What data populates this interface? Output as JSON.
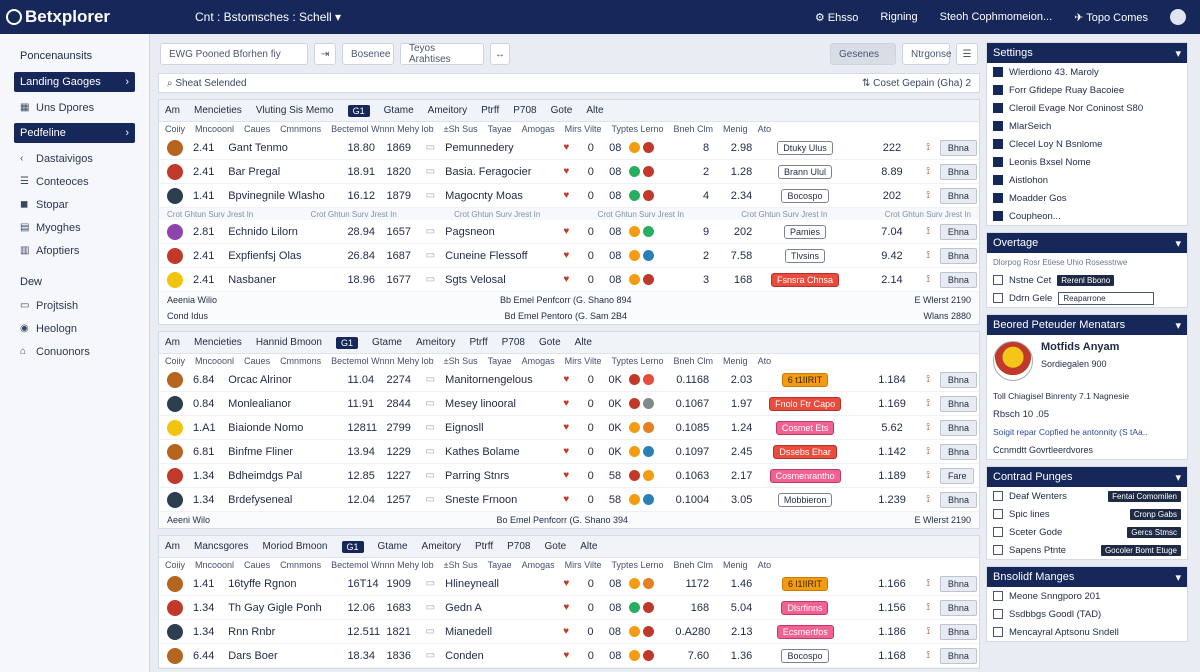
{
  "app": {
    "logo": "Betxplorer",
    "title": "Cnt : Bstomsches : Schell"
  },
  "topnav": [
    {
      "icon": "gear-icon",
      "label": "Ehsso"
    },
    {
      "icon": "",
      "label": "Rigning"
    },
    {
      "icon": "",
      "label": "Steoh Cophmomeion..."
    },
    {
      "icon": "pin-icon",
      "label": "Topo Comes"
    }
  ],
  "sidebar": {
    "heading": "Poncenaunsits",
    "primary_button": "Landing Gaoges",
    "item1": "Uns Dpores",
    "active_button": "Pedfeline",
    "items": [
      "Dastaivigos",
      "Conteoces",
      "Stopar",
      "Myoghes",
      "Afoptiers"
    ],
    "section2": "Dew",
    "items2": [
      "Projtsish",
      "Heologn",
      "Conuonors"
    ]
  },
  "toolbar": {
    "field1": "EWG Pooned Bforhen fiy",
    "field2": "Bosenee",
    "field3": "Teyos Arahtises",
    "btn_right1": "Gesenes",
    "btn_right2": "Ntrgonse"
  },
  "searchbar": {
    "left": "Sheat Selended",
    "right": "Coset Gepain (Gha) 2"
  },
  "panels": [
    {
      "head": [
        "Am",
        "Mencieties",
        "Vluting Sis Memo",
        "Gtame",
        "Ameitory",
        "Ptrff",
        "P708",
        "Gote",
        "Alte"
      ],
      "badge": "G1",
      "cols": [
        "Coiiy",
        "Mncooonl",
        "Caues",
        "Cmnmons",
        "Bectemol Wnnn Mehy lob",
        "±Sh Sus",
        "Tayae",
        "Amogas",
        "Mirs Vilte",
        "Typtes Lerno",
        "Bneh Clm",
        "Menig",
        "Ato"
      ],
      "rows": [
        {
          "num": "2.41",
          "name": "Gant Tenmo",
          "a": "18.80",
          "b": "1869",
          "title": "Pemunnedery",
          "z": "0",
          "m": "08",
          "k": "8",
          "r": "2.98",
          "pill": "Dtuky Ulus",
          "pillstyle": "",
          "val": "222",
          "btn": "Bhna",
          "color": "#b5651d",
          "dots": [
            "#f39c12",
            "#c0392b"
          ]
        },
        {
          "num": "2.41",
          "name": "Bar Pregal",
          "a": "18.91",
          "b": "1820",
          "title": "Basia. Feragocier",
          "z": "0",
          "m": "08",
          "k": "2",
          "r": "1.28",
          "pill": "Brann Ulul",
          "pillstyle": "",
          "val": "8.89",
          "btn": "Bhna",
          "color": "#c0392b",
          "dots": [
            "#27ae60",
            "#c0392b"
          ]
        },
        {
          "num": "1.41",
          "name": "Bpvinegnile Wlasho",
          "a": "16.12",
          "b": "1879",
          "title": "Magocnty Moas",
          "z": "0",
          "m": "08",
          "k": "4",
          "r": "2.34",
          "pill": "Bocospo",
          "pillstyle": "",
          "val": "202",
          "btn": "Bhna",
          "color": "#2c3e50",
          "dots": [
            "#27ae60",
            "#c0392b"
          ]
        },
        {
          "num": "2.81",
          "name": "Echnido Lilorn",
          "a": "28.94",
          "b": "1657",
          "title": "Pagsneon",
          "z": "0",
          "m": "08",
          "k": "9",
          "r": "202",
          "pill": "Pamies",
          "pillstyle": "",
          "val": "7.04",
          "btn": "Ehna",
          "color": "#8e44ad",
          "dots": [
            "#f39c12",
            "#27ae60"
          ]
        },
        {
          "num": "2.41",
          "name": "Expfienfsj Olas",
          "a": "26.84",
          "b": "1687",
          "title": "Cuneine Flessoff",
          "z": "0",
          "m": "08",
          "k": "2",
          "r": "7.58",
          "pill": "Tlvsins",
          "pillstyle": "",
          "val": "9.42",
          "btn": "Bhna",
          "color": "#c0392b",
          "dots": [
            "#f39c12",
            "#2980b9"
          ]
        },
        {
          "num": "2.41",
          "name": "Nasbaner",
          "a": "18.96",
          "b": "1677",
          "title": "Sgts Velosal",
          "z": "0",
          "m": "08",
          "k": "3",
          "r": "168",
          "pill": "Fsnsra Chnsa",
          "pillstyle": "red",
          "val": "2.14",
          "btn": "Bhna",
          "color": "#f1c40f",
          "dots": [
            "#f39c12",
            "#c0392b"
          ]
        }
      ],
      "foot1_left": "Aeenia Wilio",
      "foot1_mid": "Bb Emel Penfcorr (G. Shano 894",
      "foot1_right": "E Wlerst 2190",
      "foot2_left": "Cond Idus",
      "foot2_mid": "Bd Emel Pentoro (G. Sam 2B4",
      "foot2_right": "Wlans 2880",
      "subheader": "Crot Ghtun Surv Jrest In"
    },
    {
      "head": [
        "Am",
        "Mencieties",
        "Hannid Bmoon",
        "Gtame",
        "Ameitory",
        "Ptrff",
        "P708",
        "Gote",
        "Alte"
      ],
      "badge": "G1",
      "cols": [
        "Coiiy",
        "Mncooonl",
        "Caues",
        "Cmnmons",
        "Bectemol Wnnn Mehy lob",
        "±Sh Sus",
        "Tayae",
        "Amogas",
        "Mirs Vilte",
        "Typtes Lerno",
        "Bneh Clm",
        "Menig",
        "Ato"
      ],
      "rows": [
        {
          "num": "6.84",
          "name": "Orcac Alrinor",
          "a": "11.04",
          "b": "2274",
          "title": "Manitornengelous",
          "z": "0",
          "m": "0K",
          "k": "0.1168",
          "r": "2.03",
          "pill": "6 t1IIRIT",
          "pillstyle": "orange",
          "val": "1.184",
          "btn": "Bhna",
          "color": "#b5651d",
          "dots": [
            "#c0392b",
            "#e74c3c"
          ]
        },
        {
          "num": "0.84",
          "name": "Monlealianor",
          "a": "11.91",
          "b": "2844",
          "title": "Mesey linooral",
          "z": "0",
          "m": "0K",
          "k": "0.1067",
          "r": "1.97",
          "pill": "Fnolo Ftr Capo",
          "pillstyle": "red",
          "val": "1.169",
          "btn": "Bhna",
          "color": "#2c3e50",
          "dots": [
            "#c0392b",
            "#7f8c8d"
          ]
        },
        {
          "num": "1.A1",
          "name": "Biaionde Nomo",
          "a": "12811",
          "b": "2799",
          "title": "Eignosll",
          "z": "0",
          "m": "0K",
          "k": "0.1085",
          "r": "1.24",
          "pill": "Cosmet Ets",
          "pillstyle": "pink",
          "val": "5.62",
          "btn": "Bhna",
          "color": "#f1c40f",
          "dots": [
            "#f39c12",
            "#e67e22"
          ]
        },
        {
          "num": "6.81",
          "name": "Binfme Fliner",
          "a": "13.94",
          "b": "1229",
          "title": "Kathes Bolame",
          "z": "0",
          "m": "0K",
          "k": "0.1097",
          "r": "2.45",
          "pill": "Dssebs Ehar",
          "pillstyle": "red",
          "val": "1.142",
          "btn": "Bhna",
          "color": "#b5651d",
          "dots": [
            "#f39c12",
            "#2980b9"
          ]
        },
        {
          "num": "1.34",
          "name": "Bdheimdgs Pal",
          "a": "12.85",
          "b": "1227",
          "title": "Parring Stnrs",
          "z": "0",
          "m": "58",
          "k": "0.1063",
          "r": "2.17",
          "pill": "Cosmenrantho",
          "pillstyle": "pink",
          "val": "1.189",
          "btn": "Fare",
          "color": "#c0392b",
          "dots": [
            "#c0392b",
            "#f39c12"
          ]
        },
        {
          "num": "1.34",
          "name": "Brdefyseneal",
          "a": "12.04",
          "b": "1257",
          "title": "Sneste Frnoon",
          "z": "0",
          "m": "58",
          "k": "0.1004",
          "r": "3.05",
          "pill": "Mobbieron",
          "pillstyle": "",
          "val": "1.239",
          "btn": "Bhna",
          "color": "#2c3e50",
          "dots": [
            "#f39c12",
            "#2980b9"
          ]
        }
      ],
      "foot1_left": "Aeeni Wilo",
      "foot1_mid": "Bo Emel Penfcorr (G. Shano 394",
      "foot1_right": "E Wlerst 2190",
      "foot2_left": "",
      "foot2_mid": "",
      "foot2_right": "",
      "subheader": ""
    },
    {
      "head": [
        "Am",
        "Mancsgores",
        "Moriod Bmoon",
        "Gtame",
        "Ameitory",
        "Ptrff",
        "P708",
        "Gote",
        "Alte"
      ],
      "badge": "G1",
      "cols": [
        "Coiiy",
        "Mncooonl",
        "Caues",
        "Cmnmons",
        "Bectemol Wnnn Mehy lob",
        "±Sh Sus",
        "Tayae",
        "Amogas",
        "Mirs Vilte",
        "Typtes Lerno",
        "Bneh Clm",
        "Menig",
        "Ato"
      ],
      "rows": [
        {
          "num": "1.41",
          "name": "16tyffe Rgnon",
          "a": "16T14",
          "b": "1909",
          "title": "Hlineyneall",
          "z": "0",
          "m": "08",
          "k": "1172",
          "r": "1.46",
          "pill": "6 l1IIRIT",
          "pillstyle": "orange",
          "val": "1.166",
          "btn": "Bhna",
          "color": "#b5651d",
          "dots": [
            "#f39c12",
            "#e67e22"
          ]
        },
        {
          "num": "1.34",
          "name": "Th Gay Gigle Ponh",
          "a": "12.06",
          "b": "1683",
          "title": "Gedn A",
          "z": "0",
          "m": "08",
          "k": "168",
          "r": "5.04",
          "pill": "Dlsrfinns",
          "pillstyle": "pink",
          "val": "1.156",
          "btn": "Bhna",
          "color": "#c0392b",
          "dots": [
            "#27ae60",
            "#c0392b"
          ]
        },
        {
          "num": "1.34",
          "name": "Rnn Rnbr",
          "a": "12.511",
          "b": "1821",
          "title": "Mianedell",
          "z": "0",
          "m": "08",
          "k": "0.A280",
          "r": "2.13",
          "pill": "Ecsmertfos",
          "pillstyle": "pink",
          "val": "1.186",
          "btn": "Bhna",
          "color": "#2c3e50",
          "dots": [
            "#f39c12",
            "#c0392b"
          ]
        },
        {
          "num": "6.44",
          "name": "Dars Boer",
          "a": "18.34",
          "b": "1836",
          "title": "Conden",
          "z": "0",
          "m": "08",
          "k": "7.60",
          "r": "1.36",
          "pill": "Bocospo",
          "pillstyle": "",
          "val": "1.168",
          "btn": "Bhna",
          "color": "#b5651d",
          "dots": [
            "#f39c12",
            "#c0392b"
          ]
        }
      ],
      "foot1_left": "",
      "foot1_mid": "",
      "foot1_right": "",
      "foot2_left": "",
      "foot2_mid": "",
      "foot2_right": "",
      "subheader": ""
    }
  ],
  "right": {
    "settings": {
      "title": "Settings",
      "items": [
        "Wlerdiono 43. Maroly",
        "Forr Gfidepe Ruay Bacoiee",
        "Cleroil Evage Nor Coninost S80",
        "MlarSeich",
        "Clecel Loy N Bsnlome",
        "Leonis Bxsel Nome",
        "Aistlohon",
        "Moadder Gos",
        "Coupheon..."
      ]
    },
    "overtage": {
      "title": "Overtage",
      "subtitle": "Dlorpog Rosr Etiese Uhio  Rosesstrwe",
      "item1": "Nstne Cet",
      "item1_chip": "Rerenl Bbono",
      "item2": "Ddrn Gele",
      "item2_field": "Reaparrone"
    },
    "recent": {
      "title": "Beored Peteuder Menatars",
      "name": "Motfids Anyam",
      "sub": "Sordiegalen 900",
      "line1": "Toll Chiagisel Binrenty 7.1 Nagnesie",
      "line2": "Rbsch 10 .05",
      "line3": "Soigit repar Copfied he antonnity (S tAa..",
      "line4": "Ccnmdtt Govrtleerdvores"
    },
    "control": {
      "title": "Contrad Punges",
      "items": [
        {
          "label": "Deaf Wenters",
          "chip": "Fentai Comomilen"
        },
        {
          "label": "Spic lines",
          "chip": "Cronp Gabs"
        },
        {
          "label": "Sceter Gode",
          "chip": "Gercs Stmsc"
        },
        {
          "label": "Sapens Ptnte",
          "chip": "Gocoler Bomt Etuge"
        }
      ]
    },
    "manages": {
      "title": "Bnsolidf Manges",
      "items": [
        "Meone Snngporo 201",
        "Ssdbbgs Goodl (TAD)",
        "Mencayral Aptsonu Sndell"
      ]
    }
  }
}
